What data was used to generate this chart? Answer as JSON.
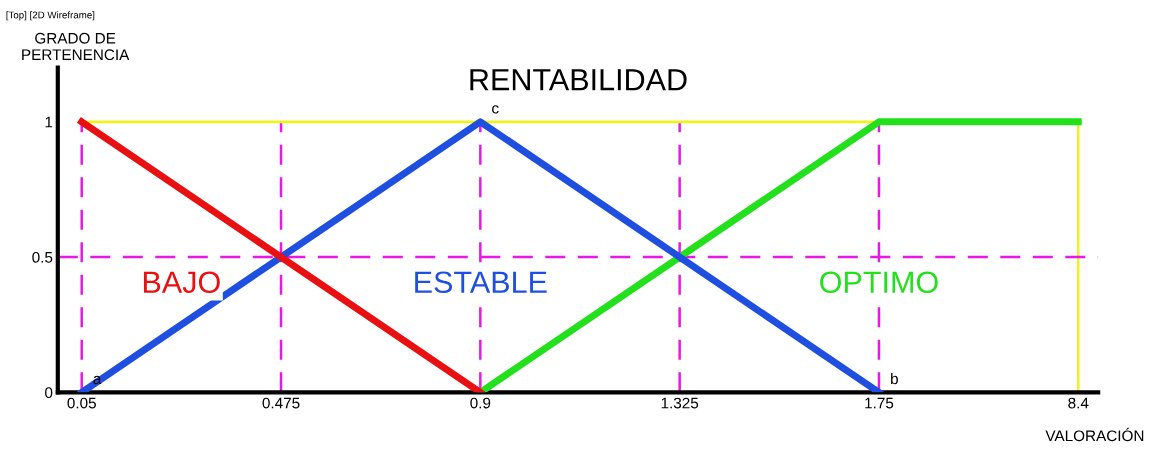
{
  "chart_data": {
    "type": "line",
    "title": "RENTABILIDAD",
    "xlabel": "VALORACIÓN",
    "ylabel": "GRADO DE\nPERTENENCIA",
    "categories": [
      "0.05",
      "0.475",
      "0.9",
      "1.325",
      "1.75",
      "8.4"
    ],
    "series": [
      {
        "name": "BAJO",
        "color": "#e81010",
        "values": [
          1,
          0.5,
          0,
          null,
          null,
          null
        ]
      },
      {
        "name": "ESTABLE",
        "color": "#1f4fe0",
        "values": [
          0,
          0.5,
          1,
          0.5,
          0,
          null
        ]
      },
      {
        "name": "OPTIMO",
        "color": "#22e01c",
        "values": [
          null,
          null,
          0,
          0.5,
          1,
          1
        ]
      },
      {
        "color": "#f2f21a",
        "values": [
          1,
          1,
          1,
          1,
          1,
          1
        ]
      }
    ],
    "ylim": [
      0,
      1.2
    ],
    "yticks": [
      0,
      0.5,
      1
    ],
    "ref_lines": [
      {
        "axis": "x",
        "value": "0.05",
        "color": "#e619e6",
        "line_style": "dashed"
      },
      {
        "axis": "x",
        "value": "0.475",
        "color": "#e619e6",
        "line_style": "dashed"
      },
      {
        "axis": "x",
        "value": "0.9",
        "color": "#e619e6",
        "line_style": "dashed"
      },
      {
        "axis": "x",
        "value": "1.325",
        "color": "#e619e6",
        "line_style": "dashed"
      },
      {
        "axis": "x",
        "value": "1.75",
        "color": "#e619e6",
        "line_style": "dashed"
      },
      {
        "axis": "x",
        "value": "8.4",
        "color": "#f2f21a",
        "line_style": "solid"
      },
      {
        "axis": "y",
        "value": 0.5,
        "color": "#e619e6",
        "line_style": "dashed"
      }
    ],
    "annotations": [
      {
        "text": "a",
        "x": "0.05",
        "y": 0
      },
      {
        "text": "c",
        "x": "0.9",
        "y": 1
      },
      {
        "text": "b",
        "x": "1.75",
        "y": 0
      },
      "[Top] [2D Wireframe]"
    ],
    "grid": false,
    "legend": false
  }
}
